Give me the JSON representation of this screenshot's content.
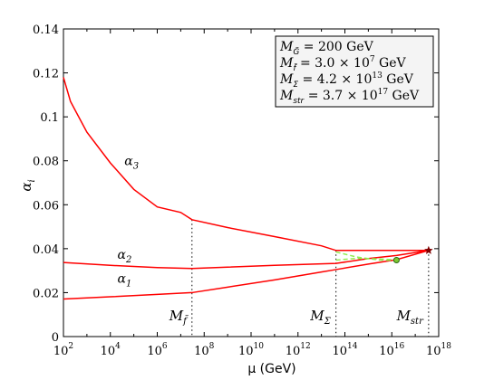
{
  "chart_data": {
    "type": "line",
    "title": "",
    "xlabel": "μ (GeV)",
    "ylabel": "α_i",
    "xscale": "log",
    "xlim": [
      100,
      1e+18
    ],
    "ylim": [
      0,
      0.14
    ],
    "grid": false,
    "x_tick_labels": [
      {
        "base": "10",
        "exp": "2"
      },
      {
        "base": "10",
        "exp": "4"
      },
      {
        "base": "10",
        "exp": "6"
      },
      {
        "base": "10",
        "exp": "8"
      },
      {
        "base": "10",
        "exp": "10"
      },
      {
        "base": "10",
        "exp": "12"
      },
      {
        "base": "10",
        "exp": "14"
      },
      {
        "base": "10",
        "exp": "16"
      },
      {
        "base": "10",
        "exp": "18"
      }
    ],
    "y_tick_labels": [
      "0",
      "0.02",
      "0.04",
      "0.06",
      "0.08",
      "0.1",
      "0.12",
      "0.14"
    ],
    "y_ticks": [
      0,
      0.02,
      0.04,
      0.06,
      0.08,
      0.1,
      0.12,
      0.14
    ],
    "x_ticks_log10": [
      2,
      4,
      6,
      8,
      10,
      12,
      14,
      16,
      18
    ],
    "legend": {
      "placement": "top-right",
      "entries": [
        {
          "lhs": "M",
          "sub": "G̃",
          "rhs": " = 200 GeV"
        },
        {
          "lhs": "M",
          "sub": "f̃",
          "rhs": " = 3.0 × 10",
          "sup": "7",
          "tail": " GeV"
        },
        {
          "lhs": "M",
          "sub": "Σ",
          "rhs": " = 4.2 × 10",
          "sup": "13",
          "tail": " GeV"
        },
        {
          "lhs": "M",
          "sub": "str",
          "rhs": " = 3.7 × 10",
          "sup": "17",
          "tail": " GeV"
        }
      ]
    },
    "series": [
      {
        "name": "α3",
        "label_base": "α",
        "label_sub": "3",
        "label_at": [
          4.6,
          0.078
        ],
        "color": "#ff0000",
        "points": [
          [
            2,
            0.118
          ],
          [
            2.3,
            0.107
          ],
          [
            3,
            0.093
          ],
          [
            4,
            0.079
          ],
          [
            5,
            0.067
          ],
          [
            6,
            0.059
          ],
          [
            7,
            0.0565
          ],
          [
            7.48,
            0.0532
          ],
          [
            9,
            0.0496
          ],
          [
            11,
            0.0455
          ],
          [
            13,
            0.0413
          ],
          [
            13.62,
            0.0392
          ],
          [
            17.57,
            0.0392
          ]
        ]
      },
      {
        "name": "α2",
        "label_base": "α",
        "label_sub": "2",
        "label_at": [
          4.3,
          0.0355
        ],
        "color": "#ff0000",
        "points": [
          [
            2,
            0.0337
          ],
          [
            4,
            0.0324
          ],
          [
            6,
            0.0314
          ],
          [
            7.48,
            0.031
          ],
          [
            9,
            0.0316
          ],
          [
            11,
            0.0324
          ],
          [
            13,
            0.0331
          ],
          [
            13.62,
            0.0333
          ],
          [
            15,
            0.0355
          ],
          [
            16.2,
            0.0369
          ],
          [
            17.57,
            0.0392
          ]
        ]
      },
      {
        "name": "α1",
        "label_base": "α",
        "label_sub": "1",
        "label_at": [
          4.3,
          0.0245
        ],
        "color": "#ff0000",
        "points": [
          [
            2,
            0.0171
          ],
          [
            4,
            0.0181
          ],
          [
            6,
            0.0192
          ],
          [
            7.48,
            0.02
          ],
          [
            9,
            0.0225
          ],
          [
            11,
            0.0258
          ],
          [
            13,
            0.0294
          ],
          [
            13.62,
            0.0305
          ],
          [
            15,
            0.033
          ],
          [
            16.2,
            0.035
          ],
          [
            17.57,
            0.0392
          ]
        ]
      }
    ],
    "dashed_series": [
      {
        "color": "#90ee50",
        "points": [
          [
            13.62,
            0.0385
          ],
          [
            14.5,
            0.0362
          ],
          [
            15.5,
            0.0348
          ],
          [
            16.2,
            0.0347
          ]
        ]
      },
      {
        "color": "#90ee50",
        "points": [
          [
            13.62,
            0.0348
          ],
          [
            14.5,
            0.0356
          ],
          [
            15.5,
            0.0353
          ],
          [
            16.2,
            0.0349
          ]
        ]
      }
    ],
    "markers": [
      {
        "type": "circle",
        "x": 16.2,
        "y": 0.0348,
        "color": "#7dc832"
      },
      {
        "type": "star",
        "x": 17.57,
        "y": 0.0392,
        "color": "#800000"
      }
    ],
    "threshold_lines": [
      {
        "x": 7.48,
        "y_top": 0.0532,
        "label_base": "M",
        "label_sub": "f̃",
        "label_y": 0.0075
      },
      {
        "x": 13.62,
        "y_top": 0.0392,
        "label_base": "M",
        "label_sub": "Σ",
        "label_y": 0.0075
      },
      {
        "x": 17.57,
        "y_top": 0.0392,
        "label_base": "M",
        "label_sub": "str",
        "label_y": 0.0075
      }
    ]
  }
}
